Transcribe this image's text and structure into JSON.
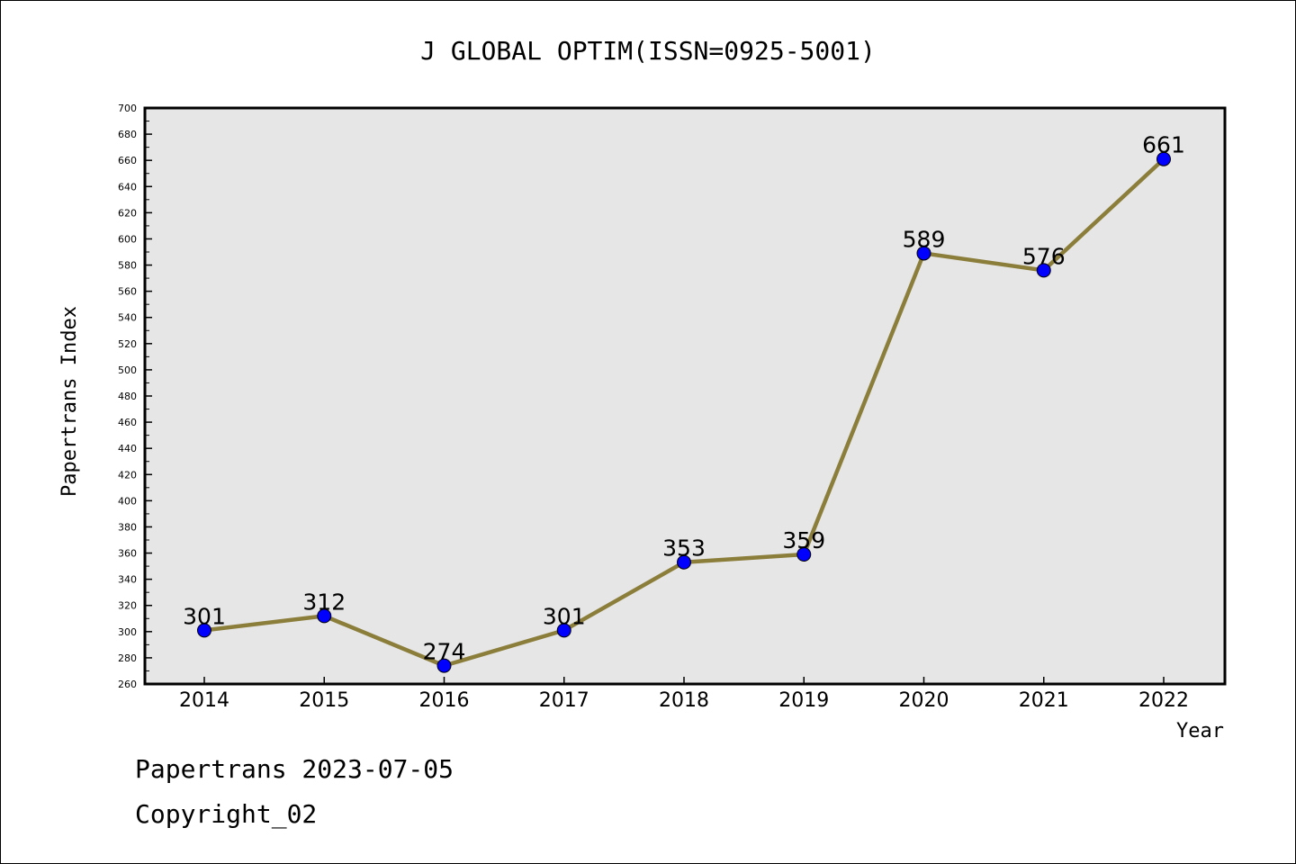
{
  "chart_data": {
    "type": "line",
    "title": "J GLOBAL OPTIM(ISSN=0925-5001)",
    "xlabel": "Year",
    "ylabel": "Papertrans Index",
    "categories": [
      "2014",
      "2015",
      "2016",
      "2017",
      "2018",
      "2019",
      "2020",
      "2021",
      "2022"
    ],
    "values": [
      301,
      312,
      274,
      301,
      353,
      359,
      589,
      576,
      661
    ],
    "ylim": [
      260,
      700
    ],
    "ytick_step": 20,
    "ytick_labels": [
      "260",
      "280",
      "300",
      "320",
      "340",
      "360",
      "380",
      "400",
      "420",
      "440",
      "460",
      "480",
      "500",
      "520",
      "540",
      "560",
      "580",
      "600",
      "620",
      "640",
      "660",
      "680",
      "700"
    ],
    "data_labels": [
      "301",
      "312",
      "274",
      "301",
      "353",
      "359",
      "589",
      "576",
      "661"
    ],
    "grid": false,
    "line_color": "#8b7d3a",
    "marker_color": "#0000ff",
    "plot_background": "#e6e6e6"
  },
  "footer": {
    "line1": "Papertrans 2023-07-05",
    "line2": "Copyright_02"
  }
}
